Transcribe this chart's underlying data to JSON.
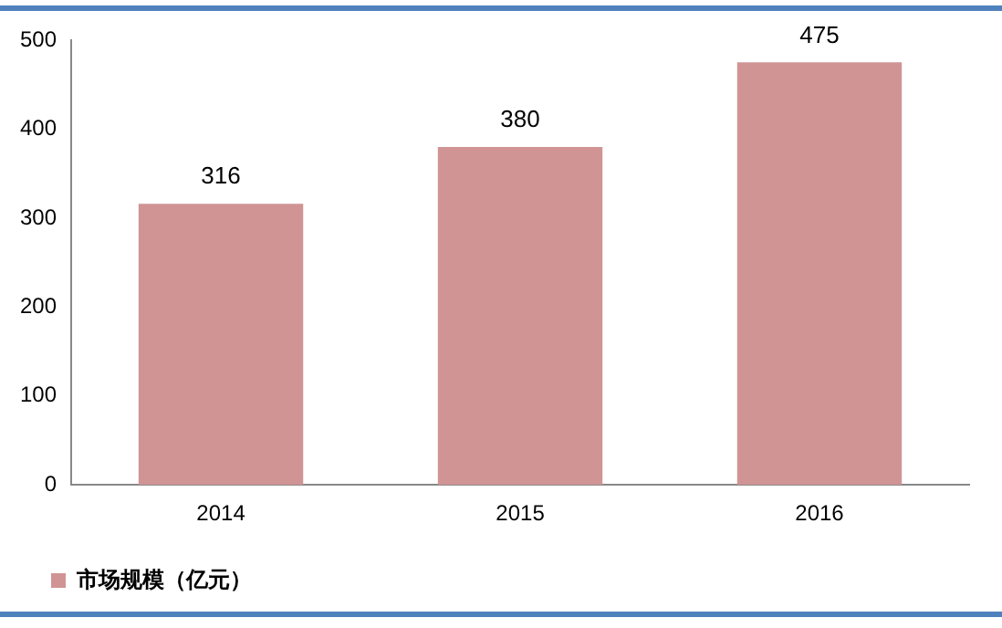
{
  "chart_data": {
    "type": "bar",
    "categories": [
      "2014",
      "2015",
      "2016"
    ],
    "series": [
      {
        "name": "市场规模（亿元）",
        "color": "#d09494",
        "values": [
          316,
          380,
          475
        ]
      }
    ],
    "ylim": [
      0,
      500
    ],
    "yticks": [
      0,
      100,
      200,
      300,
      400,
      500
    ],
    "grid": false,
    "legend": "bottom",
    "data_labels": true
  }
}
